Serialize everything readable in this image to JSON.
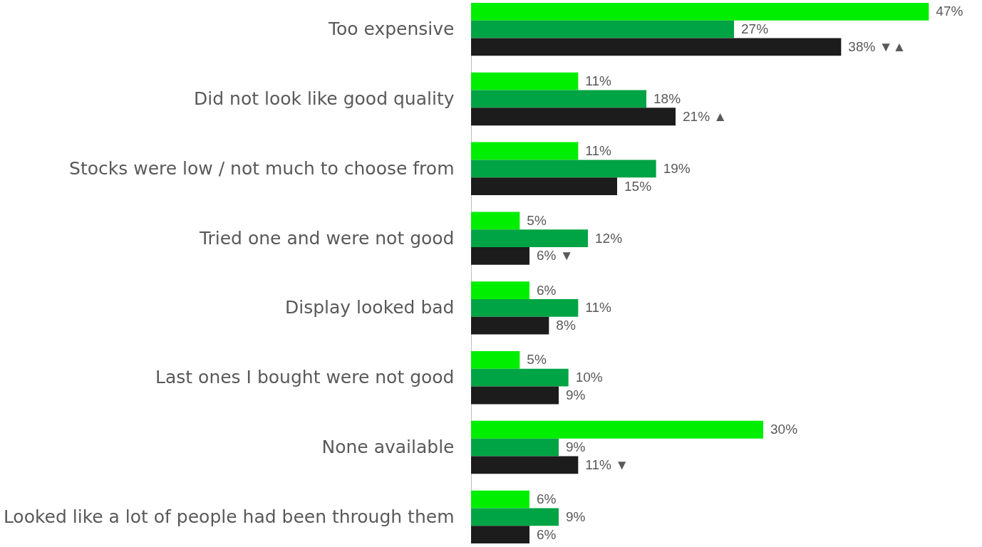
{
  "chart_data": {
    "type": "bar",
    "orientation": "horizontal",
    "categories": [
      "Too expensive",
      "Did not look like good quality",
      "Stocks were low / not much to choose from",
      "Tried one and were not good",
      "Display looked bad",
      "Last ones I bought were not good",
      "None available",
      "Looked like a lot of people had been through them"
    ],
    "series": [
      {
        "color": "#00ee00",
        "values": [
          47,
          11,
          11,
          5,
          6,
          5,
          30,
          6
        ],
        "value_labels": [
          "47%",
          "11%",
          "11%",
          "5%",
          "6%",
          "5%",
          "30%",
          "6%"
        ]
      },
      {
        "color": "#00a444",
        "values": [
          27,
          18,
          19,
          12,
          11,
          10,
          9,
          9
        ],
        "value_labels": [
          "27%",
          "18%",
          "19%",
          "12%",
          "11%",
          "10%",
          "9%",
          "9%"
        ]
      },
      {
        "color": "#1c1c1c",
        "values": [
          38,
          21,
          15,
          6,
          8,
          9,
          11,
          6
        ],
        "value_labels": [
          "38% ▼▲",
          "21% ▲",
          "15%",
          "6% ▼",
          "8%",
          "9%",
          "11% ▼",
          "6%"
        ]
      }
    ]
  }
}
